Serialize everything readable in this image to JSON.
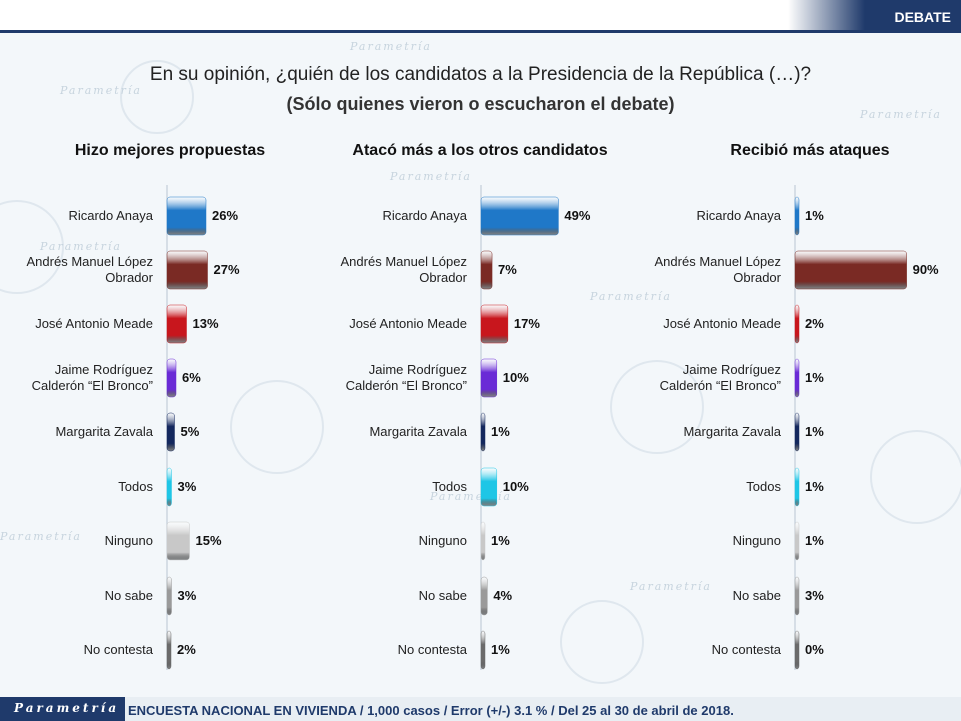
{
  "header": {
    "badge": "DEBATE"
  },
  "title": "En su opinión, ¿quién de los candidatos a la Presidencia de la República (…)?",
  "subtitle": "(Sólo quienes vieron o escucharon el debate)",
  "footer": {
    "logo": "Parametría",
    "text": "ENCUESTA NACIONAL EN VIVIENDA / 1,000 casos / Error (+/-) 3.1 % / Del 25 al 30 de abril de 2018."
  },
  "colors": {
    "ricardo": "#1f78c8",
    "amlo": "#7a2a24",
    "meade": "#c8161d",
    "bronco": "#6a2bd6",
    "zavala": "#14285e",
    "todos": "#1ec6e6",
    "ninguno": "#c8c8c8",
    "nosabe": "#9a9a9a",
    "nocontesta": "#6b6b6b"
  },
  "chart_data": [
    {
      "type": "bar",
      "title": "Hizo mejores propuestas",
      "categories": [
        "Ricardo Anaya",
        "Andrés Manuel López Obrador",
        "José Antonio Meade",
        "Jaime Rodríguez Calderón “El Bronco”",
        "Margarita Zavala",
        "Todos",
        "Ninguno",
        "No sabe",
        "No contesta"
      ],
      "values": [
        26,
        27,
        13,
        6,
        5,
        3,
        15,
        3,
        2
      ],
      "value_labels": [
        "26%",
        "27%",
        "13%",
        "6%",
        "5%",
        "3%",
        "15%",
        "3%",
        "2%"
      ],
      "xlim": [
        0,
        100
      ]
    },
    {
      "type": "bar",
      "title": "Atacó más a los otros candidatos",
      "categories": [
        "Ricardo Anaya",
        "Andrés Manuel López Obrador",
        "José Antonio Meade",
        "Jaime Rodríguez Calderón “El Bronco”",
        "Margarita Zavala",
        "Todos",
        "Ninguno",
        "No sabe",
        "No contesta"
      ],
      "values": [
        49,
        7,
        17,
        10,
        1,
        10,
        1,
        4,
        1
      ],
      "value_labels": [
        "49%",
        "7%",
        "17%",
        "10%",
        "1%",
        "10%",
        "1%",
        "4%",
        "1%"
      ],
      "xlim": [
        0,
        100
      ]
    },
    {
      "type": "bar",
      "title": "Recibió más ataques",
      "categories": [
        "Ricardo Anaya",
        "Andrés Manuel López Obrador",
        "José Antonio Meade",
        "Jaime Rodríguez Calderón “El Bronco”",
        "Margarita Zavala",
        "Todos",
        "Ninguno",
        "No sabe",
        "No contesta"
      ],
      "values": [
        1,
        90,
        2,
        1,
        1,
        1,
        1,
        3,
        0
      ],
      "value_labels": [
        "1%",
        "90%",
        "2%",
        "1%",
        "1%",
        "1%",
        "1%",
        "3%",
        "0%"
      ],
      "xlim": [
        0,
        100
      ]
    }
  ],
  "bar_colors": [
    "ricardo",
    "amlo",
    "meade",
    "bronco",
    "zavala",
    "todos",
    "ninguno",
    "nosabe",
    "nocontesta"
  ]
}
